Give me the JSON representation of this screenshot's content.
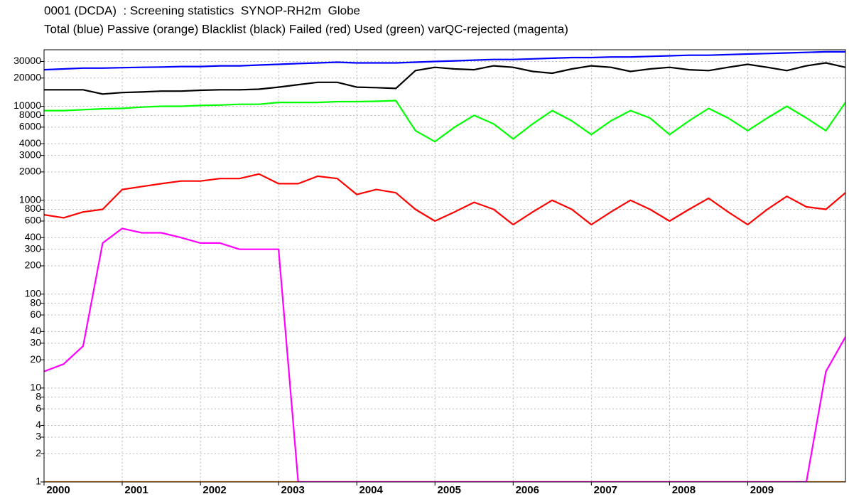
{
  "chart_data": {
    "type": "line",
    "title": "0001 (DCDA)  : Screening statistics  SYNOP-RH2m  Globe",
    "subtitle": "Total (blue) Passive (orange) Blacklist (black) Failed (red) Used (green) varQC-rejected (magenta)",
    "log_y": true,
    "grid": true,
    "xlim": [
      2000,
      2010.25
    ],
    "xticks": [
      2000,
      2001,
      2002,
      2003,
      2004,
      2005,
      2006,
      2007,
      2008,
      2009
    ],
    "ylim": [
      1,
      40000
    ],
    "yticks": [
      1,
      2,
      3,
      4,
      6,
      8,
      10,
      20,
      30,
      40,
      60,
      80,
      100,
      200,
      300,
      400,
      600,
      800,
      1000,
      2000,
      3000,
      4000,
      6000,
      8000,
      10000,
      20000,
      30000
    ],
    "x": [
      2000,
      2000.25,
      2000.5,
      2000.75,
      2001,
      2001.25,
      2001.5,
      2001.75,
      2002,
      2002.25,
      2002.5,
      2002.75,
      2003,
      2003.25,
      2003.5,
      2003.75,
      2004,
      2004.25,
      2004.5,
      2004.75,
      2005,
      2005.25,
      2005.5,
      2005.75,
      2006,
      2006.25,
      2006.5,
      2006.75,
      2007,
      2007.25,
      2007.5,
      2007.75,
      2008,
      2008.25,
      2008.5,
      2008.75,
      2009,
      2009.25,
      2009.5,
      2009.75,
      2010,
      2010.25
    ],
    "series": [
      {
        "color": "#ff8000",
        "values": [
          1,
          1,
          1,
          1,
          1,
          1,
          1,
          1,
          1,
          1,
          1,
          1,
          1,
          1,
          1,
          1,
          1,
          1,
          1,
          1,
          1,
          1,
          1,
          1,
          1,
          1,
          1,
          1,
          1,
          1,
          1,
          1,
          1,
          1,
          1,
          1,
          1,
          1,
          1,
          1,
          1,
          1
        ]
      },
      {
        "color": "#0000ff",
        "values": [
          24500,
          25000,
          25500,
          25500,
          25800,
          26000,
          26200,
          26500,
          26500,
          27000,
          27000,
          27500,
          28000,
          28500,
          29000,
          29500,
          29000,
          29000,
          29000,
          29500,
          30000,
          30500,
          31000,
          31500,
          31500,
          32000,
          32500,
          33000,
          33000,
          33500,
          33500,
          34000,
          34500,
          35000,
          35000,
          35500,
          36000,
          36500,
          37000,
          37500,
          38000,
          38000
        ]
      },
      {
        "color": "#000000",
        "values": [
          15000,
          15000,
          15000,
          13500,
          14000,
          14200,
          14500,
          14500,
          14800,
          15000,
          15000,
          15200,
          16000,
          17000,
          18000,
          18000,
          16000,
          15800,
          15500,
          24000,
          26000,
          25000,
          24500,
          27000,
          26000,
          23500,
          22500,
          25000,
          27000,
          26000,
          23500,
          25000,
          26000,
          24500,
          24000,
          26000,
          28000,
          26000,
          24000,
          27000,
          29000,
          26000
        ]
      },
      {
        "color": "#ff0000",
        "values": [
          700,
          650,
          750,
          800,
          1300,
          1400,
          1500,
          1600,
          1600,
          1700,
          1700,
          1900,
          1500,
          1500,
          1800,
          1700,
          1150,
          1300,
          1200,
          800,
          600,
          750,
          950,
          800,
          550,
          750,
          1000,
          800,
          550,
          750,
          1000,
          800,
          600,
          800,
          1050,
          750,
          550,
          800,
          1100,
          850,
          800,
          1200
        ]
      },
      {
        "color": "#00ff00",
        "values": [
          9000,
          9000,
          9200,
          9400,
          9500,
          9800,
          10000,
          10000,
          10200,
          10300,
          10500,
          10500,
          11000,
          11000,
          11000,
          11200,
          11200,
          11300,
          11500,
          5500,
          4200,
          6000,
          8000,
          6500,
          4500,
          6500,
          9000,
          7000,
          5000,
          7000,
          9000,
          7500,
          5000,
          7000,
          9500,
          7500,
          5500,
          7500,
          10000,
          7500,
          5500,
          11000
        ]
      },
      {
        "color": "#ff00ff",
        "values": [
          15,
          18,
          28,
          350,
          500,
          450,
          450,
          400,
          350,
          350,
          300,
          300,
          300,
          1,
          1,
          1,
          1,
          1,
          1,
          1,
          1,
          1,
          1,
          1,
          1,
          1,
          1,
          1,
          1,
          1,
          1,
          1,
          1,
          1,
          1,
          1,
          1,
          1,
          1,
          1,
          15,
          35
        ]
      }
    ]
  }
}
